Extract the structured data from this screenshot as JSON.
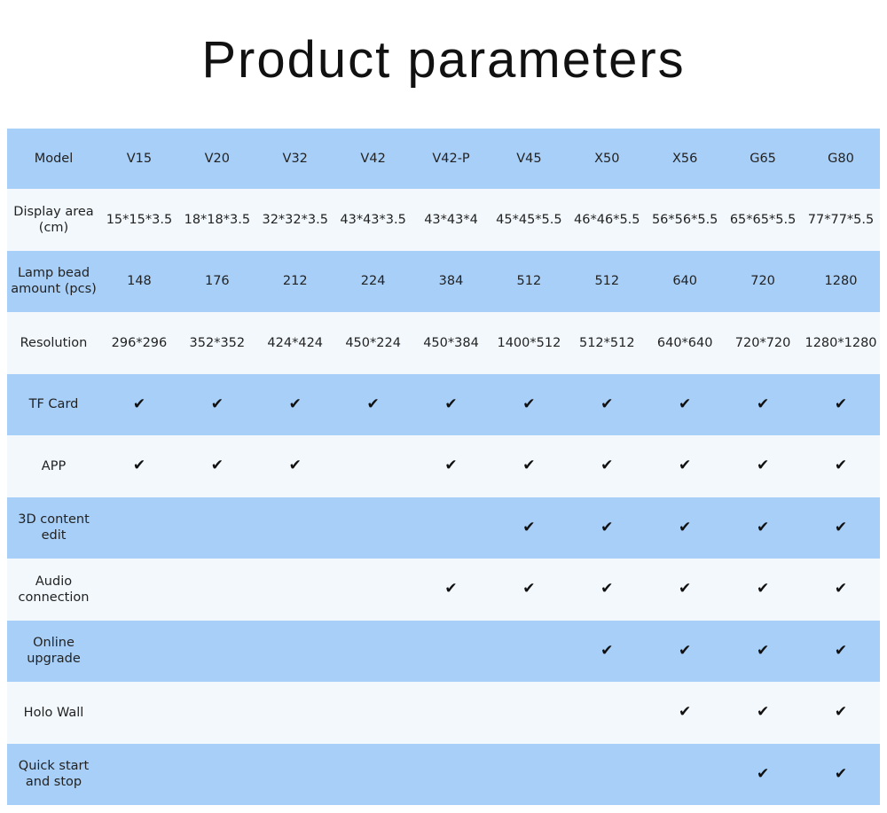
{
  "title": "Product parameters",
  "check_glyph": "✔",
  "colors": {
    "row_blue": "#a8cff8",
    "row_light": "#f2f8fc"
  },
  "header": {
    "label": "Model",
    "models": [
      "V15",
      "V20",
      "V32",
      "V42",
      "V42-P",
      "V45",
      "X50",
      "X56",
      "G65",
      "G80"
    ]
  },
  "rows": [
    {
      "label": "Display area (cm)",
      "values": [
        "15*15*3.5",
        "18*18*3.5",
        "32*32*3.5",
        "43*43*3.5",
        "43*43*4",
        "45*45*5.5",
        "46*46*5.5",
        "56*56*5.5",
        "65*65*5.5",
        "77*77*5.5"
      ]
    },
    {
      "label": "Lamp bead amount (pcs)",
      "values": [
        "148",
        "176",
        "212",
        "224",
        "384",
        "512",
        "512",
        "640",
        "720",
        "1280"
      ]
    },
    {
      "label": "Resolution",
      "values": [
        "296*296",
        "352*352",
        "424*424",
        "450*224",
        "450*384",
        "1400*512",
        "512*512",
        "640*640",
        "720*720",
        "1280*1280"
      ]
    },
    {
      "label": "TF Card",
      "checks": [
        true,
        true,
        true,
        true,
        true,
        true,
        true,
        true,
        true,
        true
      ]
    },
    {
      "label": "APP",
      "checks": [
        true,
        true,
        true,
        false,
        true,
        true,
        true,
        true,
        true,
        true
      ]
    },
    {
      "label": "3D content edit",
      "checks": [
        false,
        false,
        false,
        false,
        false,
        true,
        true,
        true,
        true,
        true
      ]
    },
    {
      "label": "Audio connection",
      "checks": [
        false,
        false,
        false,
        false,
        true,
        true,
        true,
        true,
        true,
        true
      ]
    },
    {
      "label": "Online upgrade",
      "checks": [
        false,
        false,
        false,
        false,
        false,
        false,
        true,
        true,
        true,
        true
      ]
    },
    {
      "label": "Holo Wall",
      "checks": [
        false,
        false,
        false,
        false,
        false,
        false,
        false,
        true,
        true,
        true
      ]
    },
    {
      "label": "Quick start and stop",
      "checks": [
        false,
        false,
        false,
        false,
        false,
        false,
        false,
        false,
        true,
        true
      ]
    }
  ]
}
